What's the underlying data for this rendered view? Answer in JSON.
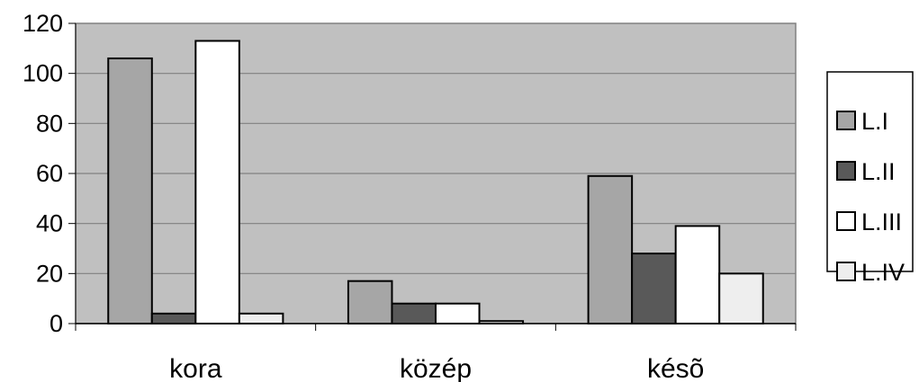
{
  "chart_data": {
    "type": "bar",
    "categories": [
      "kora",
      "közép",
      "késõ"
    ],
    "series": [
      {
        "name": "L.I",
        "values": [
          106,
          17,
          59
        ],
        "color": "#a6a6a6"
      },
      {
        "name": "L.II",
        "values": [
          4,
          8,
          28
        ],
        "color": "#595959"
      },
      {
        "name": "L.III",
        "values": [
          113,
          8,
          39
        ],
        "color": "#ffffff"
      },
      {
        "name": "L.IV",
        "values": [
          4,
          1,
          20
        ],
        "color": "#eeeeee"
      }
    ],
    "ylim": [
      0,
      120
    ],
    "yticks": [
      "0",
      "20",
      "40",
      "60",
      "80",
      "100",
      "120"
    ],
    "grid": true,
    "plot_background": "#c0c0c0",
    "legend_position": "right"
  }
}
